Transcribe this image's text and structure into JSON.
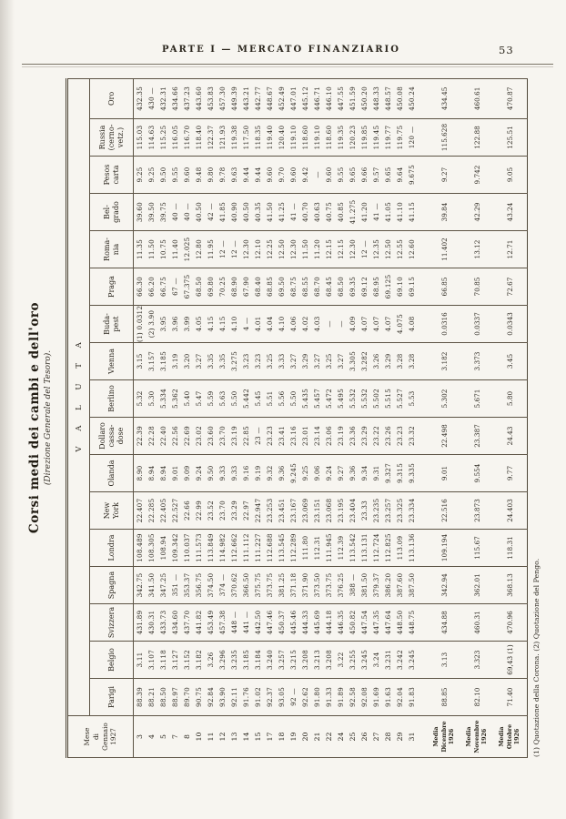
{
  "page": {
    "running_header": "PARTE I — MERCATO FINANZIARIO",
    "page_number": "53"
  },
  "table": {
    "title": "Corsi medi dei cambi e dell'oro",
    "subtitle": "(Direzione Generale del Tesoro).",
    "group_header": "V A L U T A",
    "day_header_lines": [
      "Mese",
      "di",
      "Gennaio",
      "1927"
    ],
    "day_labels": [
      "3",
      "4",
      "5",
      "7",
      "8",
      "10",
      "11",
      "12",
      "13",
      "14",
      "15",
      "17",
      "18",
      "19",
      "20",
      "21",
      "22",
      "24",
      "25",
      "26",
      "27",
      "28",
      "29",
      "31"
    ],
    "media_rows": [
      {
        "label_lines": [
          "Media",
          "Dicembre 1926"
        ]
      },
      {
        "label_lines": [
          "Media",
          "Novembre 1926"
        ]
      },
      {
        "label_lines": [
          "Media",
          "Ottobre 1926"
        ]
      }
    ],
    "columns": [
      {
        "id": "parigi",
        "label": [
          "Parigi"
        ],
        "values": [
          "88.39",
          "88.21",
          "88.50",
          "88.97",
          "89.70",
          "90.75",
          "92.84",
          "93.90",
          "92.11",
          "91.76",
          "91.02",
          "92.37",
          "93.05",
          "92 —",
          "92.62",
          "91.80",
          "91.33",
          "91.89",
          "92.58",
          "92.08",
          "91.69",
          "91.63",
          "92.04",
          "91.83"
        ],
        "medias": [
          "88.85",
          "82.10",
          "71.40"
        ]
      },
      {
        "id": "belgio",
        "label": [
          "Belgio"
        ],
        "values": [
          "3.11",
          "3.107",
          "3.118",
          "3.127",
          "3.152",
          "3.182",
          "3.26",
          "3.296",
          "3.235",
          "3.185",
          "3.184",
          "3.240",
          "3.257",
          "3.215",
          "3.208",
          "3.213",
          "3.208",
          "3.22",
          "3.255",
          "3.245",
          "3.24",
          "3.231",
          "3.242",
          "3.245"
        ],
        "medias": [
          "3.13",
          "3.323",
          "69,43 (1)"
        ]
      },
      {
        "id": "svizzera",
        "label": [
          "Svizzera"
        ],
        "values": [
          "431.89",
          "430.31",
          "433.73",
          "434.60",
          "437.70",
          "441.82",
          "453.49",
          "457.38",
          "448 —",
          "441 —",
          "442.50",
          "447.46",
          "450.37",
          "445.46",
          "444.33",
          "445.69",
          "444.18",
          "446.35",
          "450.82",
          "447.54",
          "447.35",
          "447.64",
          "448.50",
          "448.75"
        ],
        "medias": [
          "434.88",
          "460.31",
          "470.96"
        ]
      },
      {
        "id": "spagna",
        "label": [
          "Spagna"
        ],
        "values": [
          "342.75",
          "341.50",
          "347.25",
          "351 —",
          "353.37",
          "356.75",
          "374.50",
          "374 —",
          "370.62",
          "366.50",
          "375.75",
          "373.75",
          "381.25",
          "371.18",
          "371.90",
          "373.50",
          "373.75",
          "376.25",
          "388 —",
          "381.50",
          "379.37",
          "386.20",
          "387.60",
          "387.50"
        ],
        "medias": [
          "342.94",
          "362.01",
          "368.13"
        ]
      },
      {
        "id": "londra",
        "label": [
          "Londra"
        ],
        "values": [
          "108.489",
          "108.305",
          "108.94",
          "109.342",
          "110.037",
          "111.573",
          "113.849",
          "114.982",
          "112.662",
          "111.112",
          "111.227",
          "112.688",
          "113.545",
          "112.289",
          "111.80",
          "112.31",
          "111.945",
          "112.39",
          "113.542",
          "113.131",
          "112.724",
          "112.825",
          "113.09",
          "113.136"
        ],
        "medias": [
          "109.194",
          "115.67",
          "118.31"
        ]
      },
      {
        "id": "new-york",
        "label": [
          "New",
          "York"
        ],
        "values": [
          "22.407",
          "22.285",
          "22.405",
          "22.527",
          "22.66",
          "22.99",
          "23.52",
          "23.70",
          "23.29",
          "22.97",
          "22.947",
          "23.253",
          "23.451",
          "23.167",
          "23.069",
          "23.151",
          "23.068",
          "23.195",
          "23.404",
          "23.33",
          "23.235",
          "23.257",
          "23.325",
          "23.334"
        ],
        "medias": [
          "22.516",
          "23.873",
          "24.403"
        ]
      },
      {
        "id": "olanda",
        "label": [
          "Olanda"
        ],
        "values": [
          "8.90",
          "8.94",
          "8.94",
          "9.01",
          "9.09",
          "9.24",
          "9.50",
          "9.33",
          "9.33",
          "9.16",
          "9.19",
          "9.32",
          "9.36",
          "9.245",
          "9.25",
          "9.06",
          "9.24",
          "9.27",
          "9.36",
          "9.34",
          "9.31",
          "9.327",
          "9.315",
          "9.335"
        ],
        "medias": [
          "9.01",
          "9.554",
          "9.77"
        ]
      },
      {
        "id": "dollaro-cassa-dose",
        "label": [
          "Dollaro",
          "cassa-",
          "dose"
        ],
        "values": [
          "22.39",
          "22.28",
          "22.40",
          "22.56",
          "22.69",
          "23.02",
          "23.60",
          "23.70",
          "23.19",
          "22.85",
          "23 —",
          "23.23",
          "23.41",
          "23.16",
          "23.01",
          "23.14",
          "23.06",
          "23.19",
          "23.36",
          "23.29",
          "23.22",
          "23.26",
          "23.23",
          "23.32"
        ],
        "medias": [
          "22.498",
          "23.387",
          "24.43"
        ]
      },
      {
        "id": "berlino",
        "label": [
          "Berlino"
        ],
        "values": [
          "5.32",
          "5.30",
          "5.334",
          "5.362",
          "5.40",
          "5.47",
          "5.59",
          "5.63",
          "5.50",
          "5.442",
          "5.45",
          "5.51",
          "5.56",
          "5.50",
          "5.435",
          "5.457",
          "5.472",
          "5.495",
          "5.532",
          "5.532",
          "5.502",
          "5.515",
          "5.527",
          "5.53"
        ],
        "medias": [
          "5.302",
          "5.671",
          "5.80"
        ]
      },
      {
        "id": "vienna",
        "label": [
          "Vienna"
        ],
        "values": [
          "3.15",
          "3.157",
          "3.185",
          "3.19",
          "3.20",
          "3.27",
          "3.35",
          "3.35",
          "3.275",
          "3.23",
          "3.23",
          "3.25",
          "3.33",
          "3.27",
          "3.29",
          "3.27",
          "3.25",
          "3.27",
          "3.305",
          "3.282",
          "3.26",
          "3.29",
          "3.28",
          "3.28"
        ],
        "medias": [
          "3.182",
          "3.373",
          "3.45"
        ]
      },
      {
        "id": "budapest",
        "label": [
          "Buda-",
          "pest"
        ],
        "values": [
          "(1) 0.0312",
          "(2) 3.90",
          "3.95",
          "3.96",
          "3.99",
          "4.05",
          "4.15",
          "4.15",
          "4.10",
          "4 —",
          "4.01",
          "4.04",
          "4.10",
          "4.06",
          "4.02",
          "4.03",
          "—",
          "—",
          "4.09",
          "4.07",
          "4.07",
          "4.07",
          "4.075",
          "4.08"
        ],
        "medias": [
          "0.0316",
          "0.0337",
          "0.0343"
        ]
      },
      {
        "id": "praga",
        "label": [
          "Praga"
        ],
        "values": [
          "66.30",
          "66.20",
          "66.75",
          "67 —",
          "67.375",
          "68.50",
          "69.80",
          "70.25",
          "68.90",
          "67.90",
          "68.40",
          "68.85",
          "69.50",
          "68.75",
          "68.55",
          "68.70",
          "68.45",
          "68.50",
          "69.35",
          "69.12",
          "68.95",
          "69.125",
          "69.10",
          "69.15"
        ],
        "medias": [
          "66.85",
          "70.85",
          "72.67"
        ]
      },
      {
        "id": "romania",
        "label": [
          "Roma-",
          "nia"
        ],
        "values": [
          "11.35",
          "11.50",
          "10.75",
          "11.40",
          "12.025",
          "12.80",
          "11.95",
          "12 —",
          "12 —",
          "12.30",
          "12.10",
          "12.25",
          "12.50",
          "12.30",
          "11.50",
          "11.20",
          "12.15",
          "12.15",
          "12.30",
          "12 —",
          "12.35",
          "12.50",
          "12.55",
          "12.60"
        ],
        "medias": [
          "11.402",
          "13.12",
          "12.71"
        ]
      },
      {
        "id": "belgrado",
        "label": [
          "Bel-",
          "grado"
        ],
        "values": [
          "39.60",
          "39.50",
          "39.75",
          "40 —",
          "40 —",
          "40.50",
          "42 —",
          "41.85",
          "40.90",
          "40.50",
          "40.35",
          "41.50",
          "41.25",
          "41 —",
          "40.70",
          "40.63",
          "40.75",
          "40.85",
          "41.275",
          "41.20",
          "41 —",
          "41.05",
          "41.10",
          "41.15"
        ],
        "medias": [
          "39.84",
          "42.29",
          "43.24"
        ]
      },
      {
        "id": "pesos-carta",
        "label": [
          "Pesos",
          "carta"
        ],
        "values": [
          "9.25",
          "9.25",
          "9.50",
          "9.55",
          "9.60",
          "9.48",
          "9.80",
          "9.78",
          "9.63",
          "9.44",
          "9.44",
          "9.60",
          "9.70",
          "9.60",
          "9.42",
          "—",
          "9.60",
          "9.55",
          "9.65",
          "9.66",
          "9.57",
          "9.65",
          "9.64",
          "9.675"
        ],
        "medias": [
          "9.27",
          "9.742",
          "9.05"
        ]
      },
      {
        "id": "russia",
        "label": [
          "Russia",
          "(cerno-",
          "vetz.)"
        ],
        "values": [
          "115.03",
          "114.63",
          "115.25",
          "116.05",
          "116.70",
          "118.40",
          "122.37",
          "121.93",
          "119.38",
          "117.50",
          "118.35",
          "119.40",
          "120.40",
          "119.10",
          "118.60",
          "119.10",
          "118.60",
          "119.35",
          "120.23",
          "119.85",
          "119.45",
          "119.77",
          "119.75",
          "120 —"
        ],
        "medias": [
          "115.628",
          "122.88",
          "125.51"
        ]
      },
      {
        "id": "oro",
        "label": [
          "Oro"
        ],
        "values": [
          "432.35",
          "430 —",
          "432.31",
          "434.66",
          "437.23",
          "443.60",
          "453.83",
          "457.30",
          "449.39",
          "443.21",
          "442.77",
          "448.67",
          "452.49",
          "447.01",
          "445.12",
          "446.71",
          "446.10",
          "447.55",
          "451.59",
          "450.20",
          "448.33",
          "448.57",
          "450.08",
          "450.24"
        ],
        "medias": [
          "434.45",
          "460.61",
          "470.87"
        ]
      }
    ],
    "footnote": "(1) Quotazione della Corona. (2) Quotazione del Pengo."
  }
}
